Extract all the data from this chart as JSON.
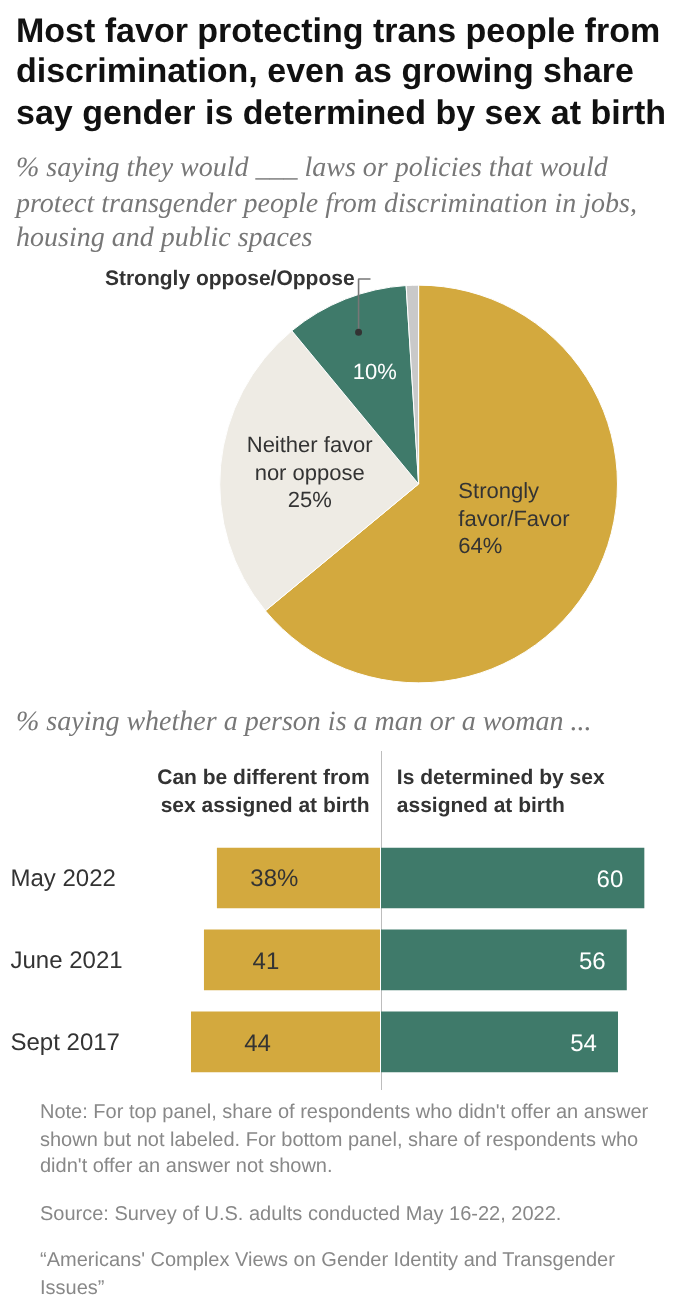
{
  "chart_data": [
    {
      "type": "pie",
      "title": "Most favor protecting trans people from discrimination, even as growing share say gender is determined by sex at birth",
      "subtitle": "% saying they would ___ laws or policies that would protect transgender people from discrimination in jobs, housing and public spaces",
      "categories": [
        "Strongly favor/Favor",
        "Neither favor nor oppose",
        "Strongly oppose/Oppose",
        null
      ],
      "values": [
        64,
        25,
        10,
        1
      ],
      "colors": [
        "#d3a93e",
        "#eeebe4",
        "#3f7a6a",
        "#c9c9c9"
      ],
      "value_labels": [
        "64%",
        "25%",
        "10%",
        null
      ]
    },
    {
      "type": "bar",
      "orientation": "horizontal",
      "title": "% saying whether a person is a man or a woman ...",
      "subtitle": "Can be different from sex assigned at birth",
      "categories": [
        "May 2022",
        "June 2021",
        "Sept 2017"
      ],
      "values": [
        38,
        41,
        44
      ],
      "color": "#d3a93e",
      "value_labels": [
        "38%",
        "41",
        "44"
      ]
    },
    {
      "type": "bar",
      "orientation": "horizontal",
      "subtitle": "Is determined by sex assigned at birth",
      "categories": [
        null,
        null,
        null
      ],
      "values": [
        60,
        56,
        54
      ],
      "color": "#3f7a6a",
      "data_labels": true,
      "annotations": [
        "Note: For top panel, share of respondents who didn't offer an answer shown but not labeled. For bottom panel, share of respondents who didn't offer an answer not shown.",
        "Source: Survey of U.S. adults conducted May 16-22, 2022.",
        "“Americans' Complex Views on Gender Identity and Transgender Issues”"
      ]
    }
  ]
}
